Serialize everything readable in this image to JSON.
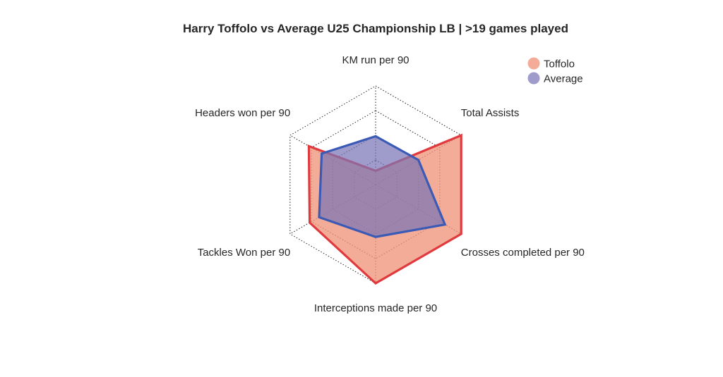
{
  "chart_data": {
    "type": "radar",
    "title": "Harry Toffolo vs Average U25 Championship LB | >19 games played",
    "axes": [
      "KM run per 90",
      "Total Assists",
      "Crosses completed per 90",
      "Interceptions made per 90",
      "Tackles Won per 90",
      "Headers won per 90"
    ],
    "rlim": [
      0,
      1
    ],
    "grid_levels": 4,
    "grid": true,
    "legend_position": "top-right",
    "series": [
      {
        "name": "Toffolo",
        "values": [
          0.14,
          1.0,
          1.0,
          1.0,
          0.77,
          0.78
        ],
        "fill": "#f0957a",
        "stroke": "#e03a3e"
      },
      {
        "name": "Average",
        "values": [
          0.49,
          0.5,
          0.81,
          0.53,
          0.66,
          0.63
        ],
        "fill": "#7a75b6",
        "stroke": "#3a5ab5"
      }
    ]
  }
}
